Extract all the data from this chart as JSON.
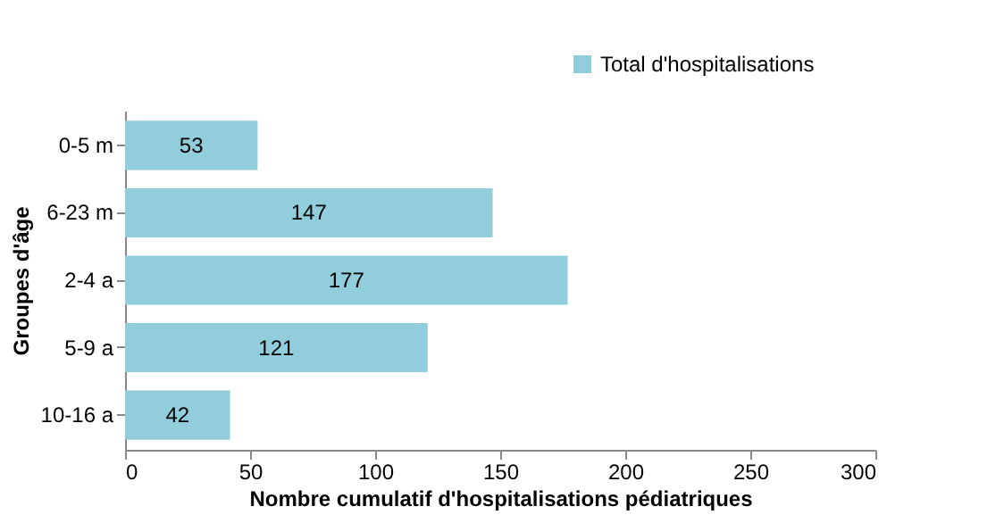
{
  "chart_data": {
    "type": "bar",
    "orientation": "horizontal",
    "xlabel": "Nombre cumulatif d'hospitalisations  pédiatriques",
    "ylabel": "Groupes d'âge",
    "categories": [
      "0-5 m",
      "6-23 m",
      "2-4 a",
      "5-9 a",
      "10-16 a"
    ],
    "series": [
      {
        "name": "Total d'hospitalisations",
        "color": "#92cddc",
        "values": [
          53,
          147,
          177,
          121,
          42
        ]
      }
    ],
    "xlim": [
      0,
      300
    ],
    "xticks": [
      0,
      50,
      100,
      150,
      200,
      250,
      300
    ],
    "grid": false,
    "legend": "top right",
    "data_labels": true
  }
}
